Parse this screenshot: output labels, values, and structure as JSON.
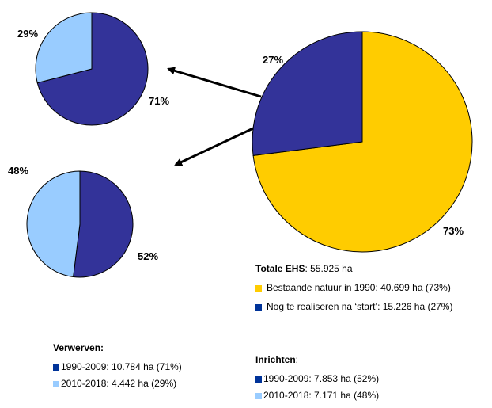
{
  "colors": {
    "yellow": "#FFCC00",
    "dark_blue": "#333399",
    "light_blue": "#99CCFF",
    "swatch_dark_blue": "#003399"
  },
  "chart_data": [
    {
      "type": "pie",
      "id": "totale",
      "slices": [
        {
          "label": "Bestaande natuur in 1990",
          "value": 73,
          "pct_label": "73%",
          "color": "#FFCC00"
        },
        {
          "label": "Nog te realiseren na 'start'",
          "value": 27,
          "pct_label": "27%",
          "color": "#333399"
        }
      ]
    },
    {
      "type": "pie",
      "id": "verwerven",
      "slices": [
        {
          "label": "1990-2009",
          "value": 71,
          "pct_label": "71%",
          "color": "#333399"
        },
        {
          "label": "2010-2018",
          "value": 29,
          "pct_label": "29%",
          "color": "#99CCFF"
        }
      ]
    },
    {
      "type": "pie",
      "id": "inrichten",
      "slices": [
        {
          "label": "1990-2009",
          "value": 52,
          "pct_label": "52%",
          "color": "#333399"
        },
        {
          "label": "2010-2018",
          "value": 48,
          "pct_label": "48%",
          "color": "#99CCFF"
        }
      ]
    }
  ],
  "legend_totale": {
    "title": "Totale EHS",
    "title_value": ": 55.925 ha",
    "items": [
      {
        "text": "Bestaande natuur in 1990: 40.699 ha (73%)"
      },
      {
        "text": "Nog te realiseren na ‘start’: 15.226 ha (27%)"
      }
    ]
  },
  "legend_verwerven": {
    "title": "Verwerven:",
    "items": [
      {
        "text": "1990-2009: 10.784 ha (71%)"
      },
      {
        "text": "2010-2018: 4.442 ha (29%)"
      }
    ]
  },
  "legend_inrichten": {
    "title": "Inrichten",
    "title_suffix": ":",
    "items": [
      {
        "text": "1990-2009: 7.853 ha (52%)"
      },
      {
        "text": "2010-2018: 7.171 ha (48%)"
      }
    ]
  }
}
